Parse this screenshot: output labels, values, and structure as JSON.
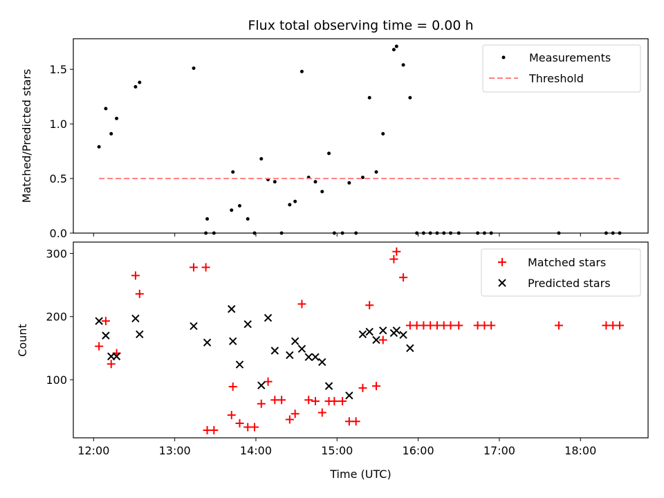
{
  "chart_data": [
    {
      "type": "scatter",
      "title": "Flux total observing time = 0.00 h",
      "xlabel": "",
      "ylabel": "Matched/Predicted stars",
      "xlim": [
        "11:45",
        "18:50"
      ],
      "ylim": [
        0,
        1.78
      ],
      "xticks": [
        "12:00",
        "13:00",
        "14:00",
        "15:00",
        "16:00",
        "17:00",
        "18:00"
      ],
      "yticks": [
        0.0,
        0.5,
        1.0,
        1.5
      ],
      "ytick_labels": [
        "0.0",
        "0.5",
        "1.0",
        "1.5"
      ],
      "legend": {
        "placement": "top-right",
        "entries": [
          "Measurements",
          "Threshold"
        ]
      },
      "colors": {
        "measurements": "#000000",
        "threshold": "#ff7f7f"
      },
      "series": [
        {
          "name": "Measurements",
          "marker": "dot",
          "points": [
            [
              "12:04",
              0.79
            ],
            [
              "12:09",
              1.14
            ],
            [
              "12:13",
              0.91
            ],
            [
              "12:17",
              1.05
            ],
            [
              "12:31",
              1.34
            ],
            [
              "12:34",
              1.38
            ],
            [
              "13:14",
              1.51
            ],
            [
              "13:23",
              0.0
            ],
            [
              "13:24",
              0.13
            ],
            [
              "13:29",
              0.0
            ],
            [
              "13:42",
              0.21
            ],
            [
              "13:43",
              0.56
            ],
            [
              "13:48",
              0.25
            ],
            [
              "13:54",
              0.13
            ],
            [
              "13:59",
              0.0
            ],
            [
              "14:04",
              0.68
            ],
            [
              "14:09",
              0.49
            ],
            [
              "14:14",
              0.47
            ],
            [
              "14:19",
              0.0
            ],
            [
              "14:25",
              0.26
            ],
            [
              "14:29",
              0.29
            ],
            [
              "14:34",
              1.48
            ],
            [
              "14:39",
              0.51
            ],
            [
              "14:44",
              0.47
            ],
            [
              "14:49",
              0.38
            ],
            [
              "14:54",
              0.73
            ],
            [
              "14:58",
              0.0
            ],
            [
              "15:04",
              0.0
            ],
            [
              "15:09",
              0.46
            ],
            [
              "15:14",
              0.0
            ],
            [
              "15:19",
              0.51
            ],
            [
              "15:24",
              1.24
            ],
            [
              "15:29",
              0.56
            ],
            [
              "15:34",
              0.91
            ],
            [
              "15:42",
              1.68
            ],
            [
              "15:44",
              1.71
            ],
            [
              "15:49",
              1.54
            ],
            [
              "15:54",
              1.24
            ],
            [
              "15:59",
              0.0
            ],
            [
              "16:04",
              0.0
            ],
            [
              "16:09",
              0.0
            ],
            [
              "16:14",
              0.0
            ],
            [
              "16:19",
              0.0
            ],
            [
              "16:24",
              0.0
            ],
            [
              "16:30",
              0.0
            ],
            [
              "16:44",
              0.0
            ],
            [
              "16:49",
              0.0
            ],
            [
              "16:54",
              0.0
            ],
            [
              "17:44",
              0.0
            ],
            [
              "18:19",
              0.0
            ],
            [
              "18:24",
              0.0
            ],
            [
              "18:29",
              0.0
            ]
          ]
        },
        {
          "name": "Threshold",
          "line": "dashed",
          "points": [
            [
              "12:04",
              0.5
            ],
            [
              "18:29",
              0.5
            ]
          ]
        }
      ]
    },
    {
      "type": "scatter",
      "title": "",
      "xlabel": "Time (UTC)",
      "ylabel": "Count",
      "xlim": [
        "11:45",
        "18:50"
      ],
      "ylim": [
        8,
        318
      ],
      "xticks": [
        "12:00",
        "13:00",
        "14:00",
        "15:00",
        "16:00",
        "17:00",
        "18:00"
      ],
      "yticks": [
        100,
        200,
        300
      ],
      "ytick_labels": [
        "100",
        "200",
        "300"
      ],
      "legend": {
        "placement": "top-right",
        "entries": [
          "Matched stars",
          "Predicted stars"
        ]
      },
      "colors": {
        "matched": "#ff0000",
        "predicted": "#000000"
      },
      "series": [
        {
          "name": "Matched stars",
          "marker": "+",
          "points": [
            [
              "12:04",
              153
            ],
            [
              "12:09",
              193
            ],
            [
              "12:13",
              125
            ],
            [
              "12:17",
              142
            ],
            [
              "12:31",
              265
            ],
            [
              "12:34",
              236
            ],
            [
              "13:14",
              278
            ],
            [
              "13:23",
              278
            ],
            [
              "13:24",
              20
            ],
            [
              "13:29",
              20
            ],
            [
              "13:42",
              44
            ],
            [
              "13:43",
              89
            ],
            [
              "13:48",
              31
            ],
            [
              "13:54",
              25
            ],
            [
              "13:59",
              25
            ],
            [
              "14:04",
              62
            ],
            [
              "14:09",
              97
            ],
            [
              "14:14",
              68
            ],
            [
              "14:19",
              68
            ],
            [
              "14:25",
              37
            ],
            [
              "14:29",
              46
            ],
            [
              "14:34",
              220
            ],
            [
              "14:39",
              68
            ],
            [
              "14:44",
              66
            ],
            [
              "14:49",
              48
            ],
            [
              "14:54",
              66
            ],
            [
              "14:58",
              66
            ],
            [
              "15:04",
              66
            ],
            [
              "15:09",
              34
            ],
            [
              "15:14",
              34
            ],
            [
              "15:19",
              87
            ],
            [
              "15:24",
              218
            ],
            [
              "15:29",
              90
            ],
            [
              "15:34",
              163
            ],
            [
              "15:42",
              291
            ],
            [
              "15:44",
              303
            ],
            [
              "15:49",
              262
            ],
            [
              "15:54",
              186
            ],
            [
              "15:59",
              186
            ],
            [
              "16:04",
              186
            ],
            [
              "16:09",
              186
            ],
            [
              "16:14",
              186
            ],
            [
              "16:19",
              186
            ],
            [
              "16:24",
              186
            ],
            [
              "16:30",
              186
            ],
            [
              "16:44",
              186
            ],
            [
              "16:49",
              186
            ],
            [
              "16:54",
              186
            ],
            [
              "17:44",
              186
            ],
            [
              "18:19",
              186
            ],
            [
              "18:24",
              186
            ],
            [
              "18:29",
              186
            ]
          ]
        },
        {
          "name": "Predicted stars",
          "marker": "x",
          "points": [
            [
              "12:04",
              193
            ],
            [
              "12:09",
              170
            ],
            [
              "12:13",
              137
            ],
            [
              "12:17",
              137
            ],
            [
              "12:31",
              197
            ],
            [
              "12:34",
              172
            ],
            [
              "13:14",
              185
            ],
            [
              "13:24",
              159
            ],
            [
              "13:42",
              212
            ],
            [
              "13:43",
              161
            ],
            [
              "13:48",
              124
            ],
            [
              "13:54",
              188
            ],
            [
              "14:04",
              91
            ],
            [
              "14:09",
              198
            ],
            [
              "14:14",
              146
            ],
            [
              "14:25",
              139
            ],
            [
              "14:29",
              161
            ],
            [
              "14:34",
              149
            ],
            [
              "14:39",
              136
            ],
            [
              "14:44",
              136
            ],
            [
              "14:49",
              128
            ],
            [
              "14:54",
              90
            ],
            [
              "15:09",
              75
            ],
            [
              "15:19",
              172
            ],
            [
              "15:24",
              176
            ],
            [
              "15:29",
              163
            ],
            [
              "15:34",
              178
            ],
            [
              "15:42",
              174
            ],
            [
              "15:44",
              178
            ],
            [
              "15:49",
              171
            ],
            [
              "15:54",
              150
            ]
          ]
        }
      ]
    }
  ]
}
